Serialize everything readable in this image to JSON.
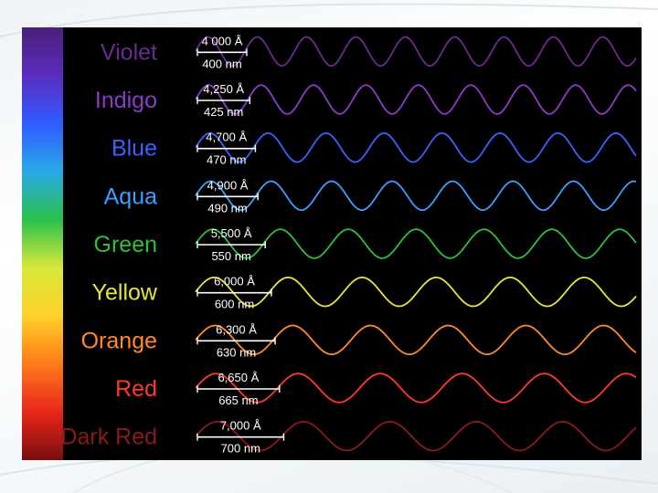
{
  "bands": [
    {
      "name": "Violet",
      "angstrom": "4 000 Å",
      "nm": "400 nm",
      "wavelength_nm": 400,
      "color": "#6a2c8e"
    },
    {
      "name": "Indigo",
      "angstrom": "4,250 Å",
      "nm": "425 nm",
      "wavelength_nm": 425,
      "color": "#8a3cc8"
    },
    {
      "name": "Blue",
      "angstrom": "4,700 Å",
      "nm": "470 nm",
      "wavelength_nm": 470,
      "color": "#3f5fff"
    },
    {
      "name": "Aqua",
      "angstrom": "4,900 Å",
      "nm": "490 nm",
      "wavelength_nm": 490,
      "color": "#3aa0ff"
    },
    {
      "name": "Green",
      "angstrom": "5,500 Å",
      "nm": "550 nm",
      "wavelength_nm": 550,
      "color": "#2fbf3a"
    },
    {
      "name": "Yellow",
      "angstrom": "6,000 Å",
      "nm": "600 nm",
      "wavelength_nm": 600,
      "color": "#e6e63a"
    },
    {
      "name": "Orange",
      "angstrom": "6,300 Å",
      "nm": "630 nm",
      "wavelength_nm": 630,
      "color": "#ff8a2a"
    },
    {
      "name": "Red",
      "angstrom": "6,650 Å",
      "nm": "665 nm",
      "wavelength_nm": 665,
      "color": "#ff3a2a"
    },
    {
      "name": "Dark Red",
      "angstrom": "7,000 Å",
      "nm": "700 nm",
      "wavelength_nm": 700,
      "color": "#8c1a1a"
    }
  ],
  "colors": {
    "background": "#000000",
    "annotation_text": "#ffffff",
    "spectrum_bar": [
      "#4b1f78",
      "#5a2cc0",
      "#2f5cff",
      "#2aa8e8",
      "#29c04a",
      "#d8e83a",
      "#ffd12a",
      "#ff7a1a",
      "#e8261a",
      "#7a0e0e"
    ]
  }
}
